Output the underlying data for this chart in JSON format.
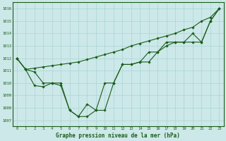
{
  "xlabel": "Graphe pression niveau de la mer (hPa)",
  "ylim": [
    1006.5,
    1016.5
  ],
  "xlim": [
    -0.5,
    23.5
  ],
  "yticks": [
    1007,
    1008,
    1009,
    1010,
    1011,
    1012,
    1013,
    1014,
    1015,
    1016
  ],
  "xticks": [
    0,
    1,
    2,
    3,
    4,
    5,
    6,
    7,
    8,
    9,
    10,
    11,
    12,
    13,
    14,
    15,
    16,
    17,
    18,
    19,
    20,
    21,
    22,
    23
  ],
  "bg_color": "#cce8e8",
  "line_color": "#1a5c1a",
  "grid_color": "#aad4d4",
  "series": [
    [
      1012.0,
      1011.1,
      1011.2,
      1011.3,
      1011.4,
      1011.5,
      1011.6,
      1011.7,
      1011.9,
      1012.1,
      1012.3,
      1012.5,
      1012.7,
      1013.0,
      1013.2,
      1013.4,
      1013.6,
      1013.8,
      1014.0,
      1014.3,
      1014.5,
      1015.0,
      1015.3,
      1016.0
    ],
    [
      1012.0,
      1011.1,
      1009.8,
      1009.7,
      1010.0,
      1010.0,
      1007.8,
      1007.3,
      1008.3,
      1007.8,
      1010.0,
      1010.0,
      1011.5,
      1011.5,
      1011.7,
      1012.5,
      1012.5,
      1013.3,
      1013.3,
      1013.3,
      1014.0,
      1013.3,
      1015.0,
      1016.0
    ],
    [
      1012.0,
      1011.1,
      1010.9,
      1010.0,
      1010.0,
      1009.8,
      1007.8,
      1007.3,
      1007.3,
      1007.8,
      1007.8,
      1010.0,
      1011.5,
      1011.5,
      1011.7,
      1011.7,
      1012.5,
      1013.0,
      1013.3,
      1013.3,
      1013.3,
      1013.3,
      1015.0,
      1016.0
    ]
  ]
}
